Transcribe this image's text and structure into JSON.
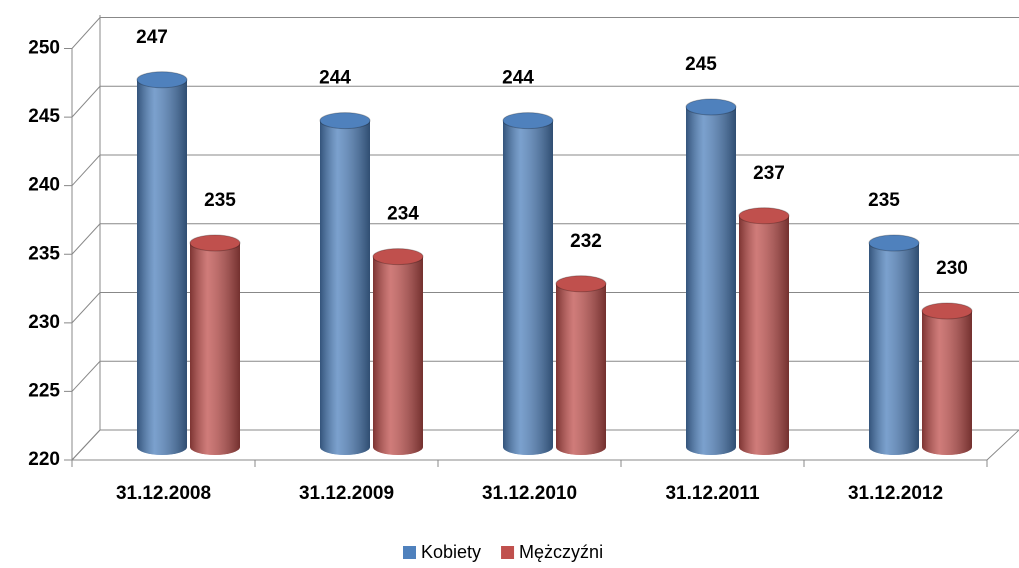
{
  "chart_data": {
    "type": "bar3d",
    "categories": [
      "31.12.2008",
      "31.12.2009",
      "31.12.2010",
      "31.12.2011",
      "31.12.2012"
    ],
    "series": [
      {
        "name": "Kobiety",
        "color": "#4f81bd",
        "values": [
          247,
          244,
          244,
          245,
          235
        ]
      },
      {
        "name": "Mężczyźni",
        "color": "#c0504d",
        "values": [
          235,
          234,
          232,
          237,
          230
        ]
      }
    ],
    "ylim": [
      220,
      250
    ],
    "yticks": [
      220,
      225,
      230,
      235,
      240,
      245,
      250
    ],
    "grid": true,
    "legend": "bottom"
  }
}
